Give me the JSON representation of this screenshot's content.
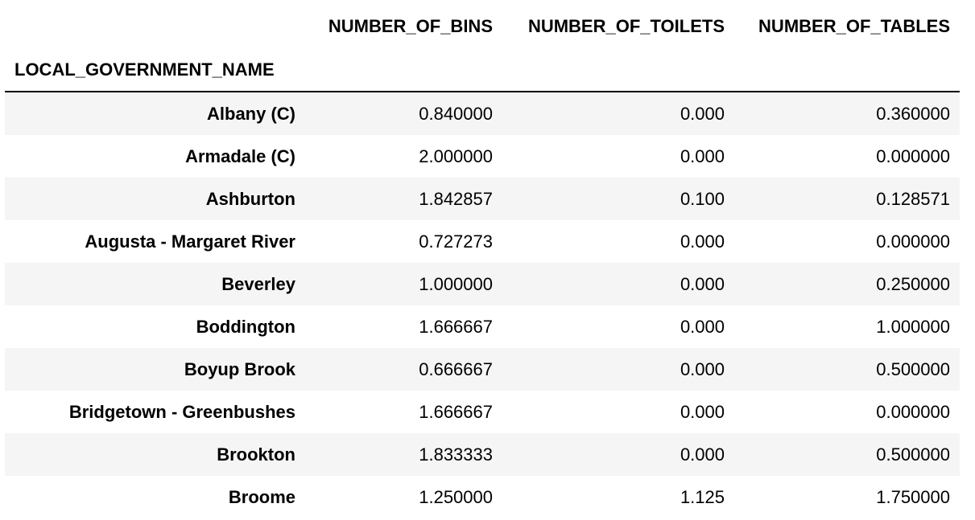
{
  "table": {
    "columns": [
      "NUMBER_OF_BINS",
      "NUMBER_OF_TOILETS",
      "NUMBER_OF_TABLES"
    ],
    "index_name": "LOCAL_GOVERNMENT_NAME",
    "rows": [
      {
        "name": "Albany (C)",
        "bins": "0.840000",
        "toilets": "0.000",
        "tables": "0.360000"
      },
      {
        "name": "Armadale (C)",
        "bins": "2.000000",
        "toilets": "0.000",
        "tables": "0.000000"
      },
      {
        "name": "Ashburton",
        "bins": "1.842857",
        "toilets": "0.100",
        "tables": "0.128571"
      },
      {
        "name": "Augusta - Margaret River",
        "bins": "0.727273",
        "toilets": "0.000",
        "tables": "0.000000"
      },
      {
        "name": "Beverley",
        "bins": "1.000000",
        "toilets": "0.000",
        "tables": "0.250000"
      },
      {
        "name": "Boddington",
        "bins": "1.666667",
        "toilets": "0.000",
        "tables": "1.000000"
      },
      {
        "name": "Boyup Brook",
        "bins": "0.666667",
        "toilets": "0.000",
        "tables": "0.500000"
      },
      {
        "name": "Bridgetown - Greenbushes",
        "bins": "1.666667",
        "toilets": "0.000",
        "tables": "0.000000"
      },
      {
        "name": "Brookton",
        "bins": "1.833333",
        "toilets": "0.000",
        "tables": "0.500000"
      },
      {
        "name": "Broome",
        "bins": "1.250000",
        "toilets": "1.125",
        "tables": "1.750000"
      }
    ]
  }
}
